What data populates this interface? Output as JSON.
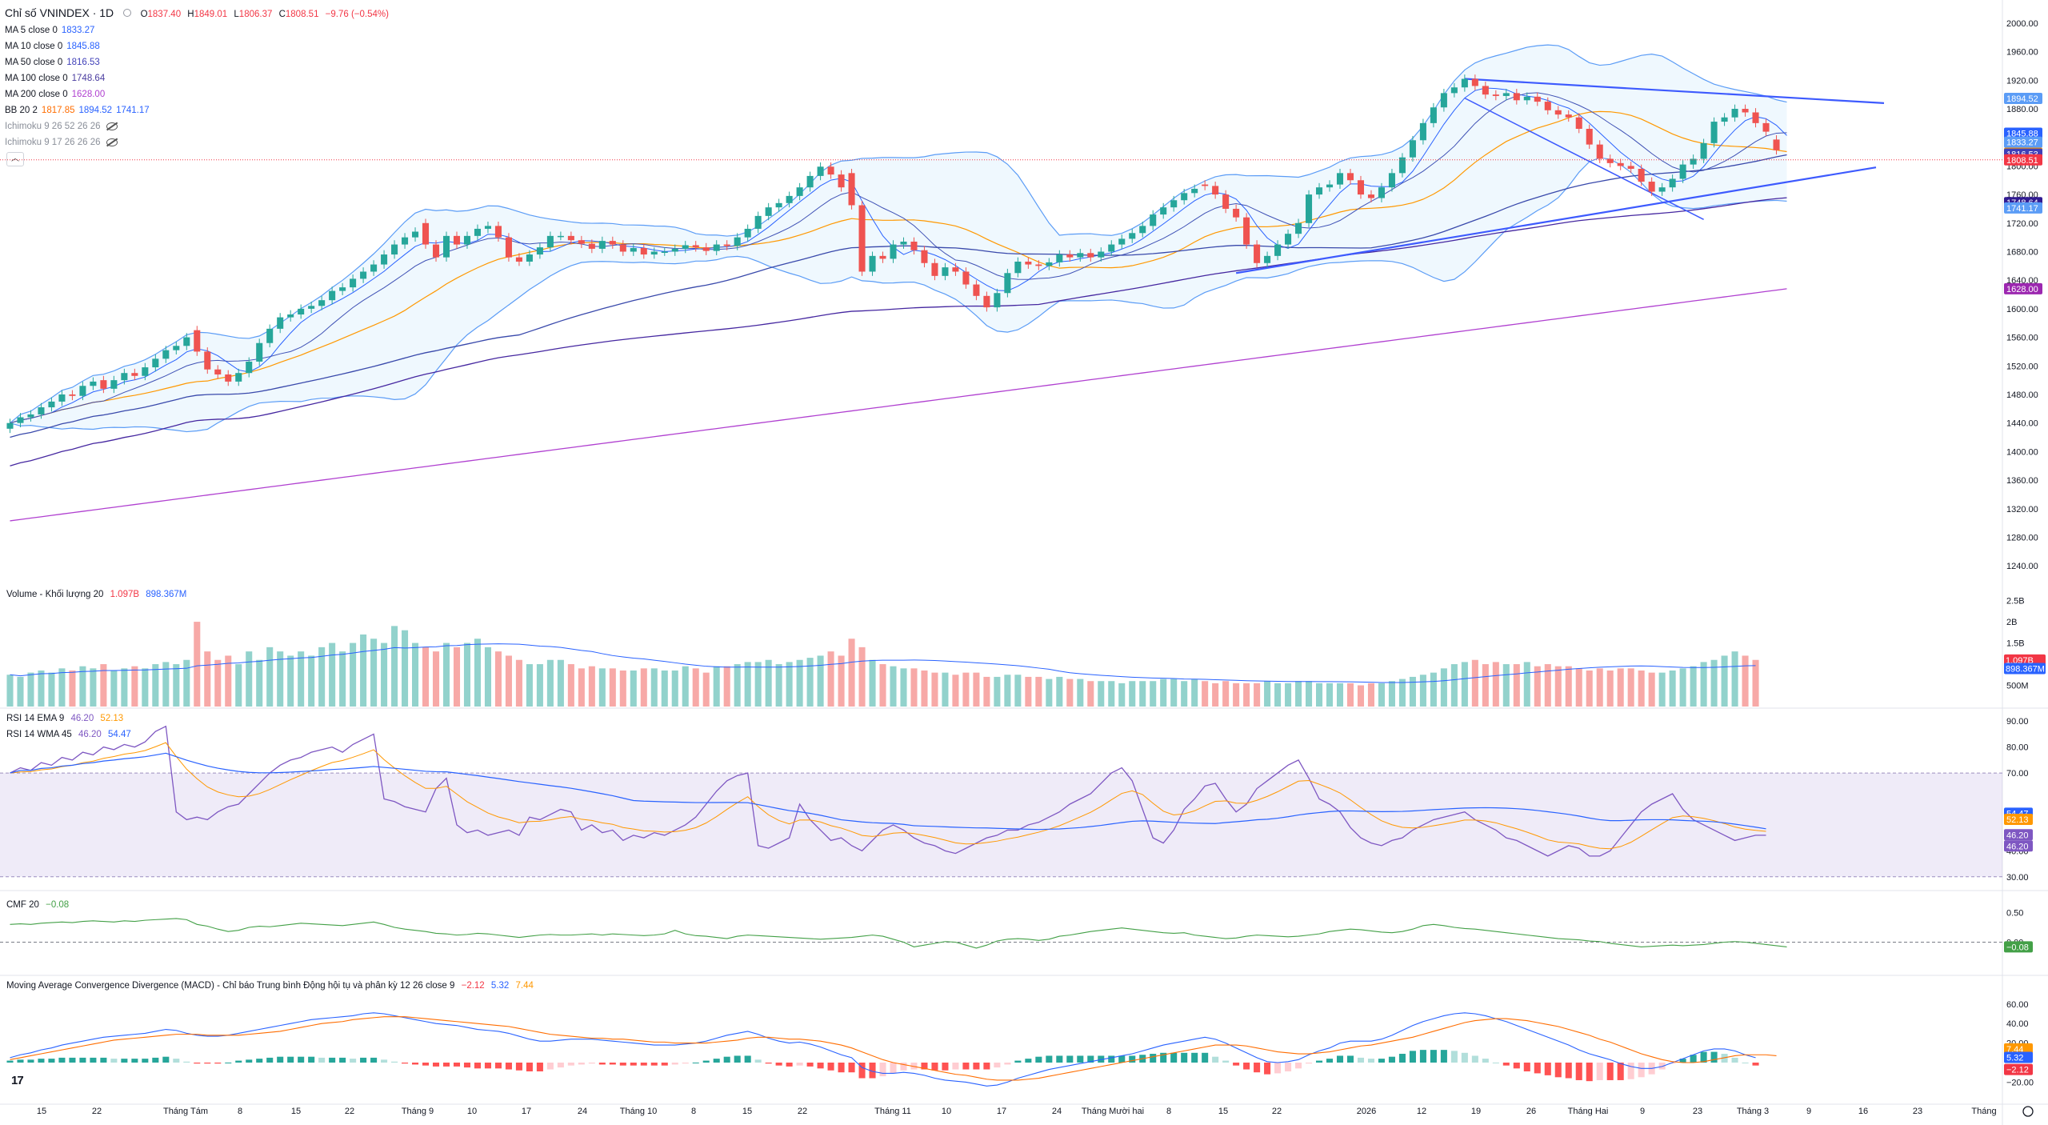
{
  "header": {
    "symbol": "Chỉ số VNINDEX · 1D",
    "open_label": "O",
    "open": "1837.40",
    "high_label": "H",
    "high": "1849.01",
    "low_label": "L",
    "low": "1806.37",
    "close_label": "C",
    "close": "1808.51",
    "change": "−9.76 (−0.54%)"
  },
  "indicators": [
    {
      "label": "MA 5 close 0",
      "values": [
        "1833.27"
      ],
      "colors": [
        "#2962ff"
      ]
    },
    {
      "label": "MA 10 close 0",
      "values": [
        "1845.88"
      ],
      "colors": [
        "#2962ff"
      ]
    },
    {
      "label": "MA 50 close 0",
      "values": [
        "1816.53"
      ],
      "colors": [
        "#3f3fb8"
      ]
    },
    {
      "label": "MA 100 close 0",
      "values": [
        "1748.64"
      ],
      "colors": [
        "#4a3ca0"
      ]
    },
    {
      "label": "MA 200 close 0",
      "values": [
        "1628.00"
      ],
      "colors": [
        "#b040d0"
      ]
    },
    {
      "label": "BB 20 2",
      "values": [
        "1817.85",
        "1894.52",
        "1741.17"
      ],
      "colors": [
        "#ff6d00",
        "#2962ff",
        "#2962ff"
      ]
    },
    {
      "label": "Ichimoku 9 26 52 26 26",
      "values": [],
      "colors": [],
      "hidden": true
    },
    {
      "label": "Ichimoku 9 17 26 26 26",
      "values": [],
      "colors": [],
      "hidden": true
    }
  ],
  "collapse_icon": "chevron-up-icon",
  "panes": {
    "volume": {
      "label": "Volume - Khối lượng 20",
      "values": [
        "1.097B",
        "898.367M"
      ]
    },
    "rsi1": {
      "label": "RSI 14 EMA 9",
      "values": [
        "46.20",
        "52.13"
      ]
    },
    "rsi2": {
      "label": "RSI 14 WMA 45",
      "values": [
        "46.20",
        "54.47"
      ]
    },
    "cmf": {
      "label": "CMF 20",
      "values": [
        "−0.08"
      ]
    },
    "macd": {
      "label": "Moving Average Convergence Divergence (MACD) - Chỉ báo Trung bình Động hội tụ và phân kỳ 12 26 close 9",
      "values": [
        "−2.12",
        "5.32",
        "7.44"
      ]
    }
  },
  "price_axis": [
    "2000.00",
    "1960.00",
    "1920.00",
    "1880.00",
    "1800.00",
    "1760.00",
    "1720.00",
    "1680.00",
    "1640.00",
    "1600.00",
    "1560.00",
    "1520.00",
    "1480.00",
    "1440.00",
    "1400.00",
    "1360.00",
    "1320.00",
    "1280.00",
    "1240.00"
  ],
  "price_tags": [
    {
      "text": "1894.52",
      "price": 1894.52,
      "color": "#5b9cf6"
    },
    {
      "text": "1845.88",
      "price": 1845.88,
      "color": "#2962ff"
    },
    {
      "text": "1833.27",
      "price": 1833.27,
      "color": "#5b9cf6"
    },
    {
      "text": "1817.85",
      "price": 1817.85,
      "color": "#ff9800"
    },
    {
      "text": "1816.53",
      "price": 1816.53,
      "color": "#3f3fb8"
    },
    {
      "text": "1808.51",
      "price": 1808.51,
      "color": "#f23645"
    },
    {
      "text": "1748.64",
      "price": 1748.64,
      "color": "#311b92"
    },
    {
      "text": "1741.17",
      "price": 1741.17,
      "color": "#5b9cf6"
    },
    {
      "text": "1628.00",
      "price": 1628.0,
      "color": "#9c27b0"
    }
  ],
  "volume_axis": [
    "2.5B",
    "2B",
    "1.5B",
    "500M"
  ],
  "volume_tags": [
    {
      "text": "1.097B",
      "color": "#f23645"
    },
    {
      "text": "898.367M",
      "color": "#2962ff"
    }
  ],
  "rsi_axis": [
    "90.00",
    "80.00",
    "70.00",
    "40.00",
    "30.00"
  ],
  "rsi_tags": [
    {
      "text": "54.47",
      "value": 54.47,
      "color": "#2962ff"
    },
    {
      "text": "52.13",
      "value": 52.13,
      "color": "#ff9800"
    },
    {
      "text": "46.20",
      "value": 46.2,
      "color": "#7e57c2"
    },
    {
      "text": "46.20",
      "value": 46.2,
      "color": "#7e57c2"
    }
  ],
  "cmf_axis": [
    "0.50",
    "0.00"
  ],
  "cmf_tag": {
    "text": "−0.08",
    "color": "#43a047"
  },
  "macd_axis": [
    "60.00",
    "40.00",
    "20.00",
    "−20.00"
  ],
  "macd_tags": [
    {
      "text": "7.44",
      "value": 7.44,
      "color": "#ff9800"
    },
    {
      "text": "5.32",
      "value": 5.32,
      "color": "#2962ff"
    },
    {
      "text": "−2.12",
      "value": -2.12,
      "color": "#f23645"
    }
  ],
  "date_axis": [
    "15",
    "22",
    "Tháng Tám",
    "8",
    "15",
    "22",
    "Tháng 9",
    "10",
    "17",
    "24",
    "Tháng 10",
    "8",
    "15",
    "22",
    "Tháng 11",
    "10",
    "17",
    "24",
    "Tháng Mười hai",
    "8",
    "15",
    "22",
    "2026",
    "12",
    "19",
    "26",
    "Tháng Hai",
    "9",
    "23",
    "Tháng 3",
    "9",
    "16",
    "23",
    "Tháng"
  ],
  "chart_data": {
    "type": "candlestick",
    "title": "Chỉ số VNINDEX · 1D",
    "ylim": [
      1220,
      2010
    ],
    "closes": [
      1440,
      1448,
      1452,
      1462,
      1470,
      1480,
      1478,
      1492,
      1498,
      1488,
      1500,
      1510,
      1506,
      1518,
      1530,
      1542,
      1548,
      1560,
      1540,
      1515,
      1508,
      1498,
      1510,
      1526,
      1552,
      1572,
      1588,
      1592,
      1600,
      1604,
      1612,
      1625,
      1630,
      1642,
      1652,
      1662,
      1676,
      1690,
      1700,
      1708,
      1690,
      1672,
      1702,
      1690,
      1702,
      1712,
      1716,
      1700,
      1672,
      1666,
      1676,
      1686,
      1702,
      1702,
      1696,
      1691,
      1684,
      1695,
      1690,
      1680,
      1685,
      1676,
      1680,
      1680,
      1684,
      1689,
      1686,
      1681,
      1690,
      1688,
      1700,
      1712,
      1730,
      1742,
      1748,
      1758,
      1770,
      1786,
      1799,
      1788,
      1770,
      1745,
      1652,
      1674,
      1670,
      1690,
      1694,
      1682,
      1664,
      1646,
      1658,
      1652,
      1634,
      1618,
      1602,
      1622,
      1650,
      1666,
      1662,
      1660,
      1665,
      1676,
      1672,
      1678,
      1672,
      1680,
      1690,
      1698,
      1706,
      1716,
      1732,
      1742,
      1752,
      1762,
      1768,
      1772,
      1760,
      1740,
      1728,
      1690,
      1664,
      1674,
      1690,
      1705,
      1720,
      1760,
      1770,
      1774,
      1790,
      1780,
      1760,
      1755,
      1770,
      1790,
      1812,
      1836,
      1860,
      1882,
      1902,
      1910,
      1922,
      1912,
      1900,
      1898,
      1902,
      1892,
      1897,
      1890,
      1878,
      1872,
      1868,
      1852,
      1830,
      1810,
      1804,
      1800,
      1796,
      1778,
      1764,
      1770,
      1782,
      1802,
      1810,
      1832,
      1862,
      1868,
      1880,
      1875,
      1860,
      1848,
      1822,
      1808
    ],
    "opens": [
      1432,
      1440,
      1448,
      1452,
      1462,
      1470,
      1480,
      1478,
      1492,
      1500,
      1488,
      1500,
      1510,
      1506,
      1518,
      1530,
      1542,
      1548,
      1570,
      1540,
      1515,
      1508,
      1498,
      1510,
      1526,
      1552,
      1572,
      1588,
      1592,
      1600,
      1604,
      1612,
      1625,
      1630,
      1642,
      1652,
      1662,
      1676,
      1690,
      1700,
      1720,
      1690,
      1672,
      1702,
      1690,
      1702,
      1712,
      1716,
      1700,
      1672,
      1666,
      1676,
      1686,
      1702,
      1702,
      1696,
      1691,
      1684,
      1695,
      1690,
      1680,
      1685,
      1676,
      1680,
      1680,
      1684,
      1689,
      1686,
      1681,
      1690,
      1688,
      1700,
      1712,
      1730,
      1742,
      1748,
      1758,
      1770,
      1786,
      1799,
      1788,
      1790,
      1745,
      1652,
      1674,
      1670,
      1690,
      1694,
      1682,
      1664,
      1646,
      1658,
      1652,
      1634,
      1618,
      1602,
      1622,
      1650,
      1666,
      1662,
      1660,
      1665,
      1676,
      1672,
      1678,
      1672,
      1680,
      1690,
      1698,
      1706,
      1716,
      1732,
      1742,
      1752,
      1762,
      1774,
      1772,
      1760,
      1740,
      1728,
      1690,
      1664,
      1674,
      1690,
      1705,
      1720,
      1760,
      1770,
      1774,
      1790,
      1780,
      1760,
      1755,
      1770,
      1790,
      1812,
      1836,
      1860,
      1882,
      1902,
      1910,
      1922,
      1912,
      1900,
      1898,
      1902,
      1892,
      1897,
      1890,
      1878,
      1872,
      1868,
      1852,
      1830,
      1810,
      1804,
      1800,
      1796,
      1778,
      1764,
      1770,
      1782,
      1802,
      1810,
      1832,
      1862,
      1868,
      1880,
      1875,
      1860,
      1837
    ],
    "volume_B": [
      0.75,
      0.7,
      0.8,
      0.85,
      0.8,
      0.9,
      0.85,
      0.95,
      0.9,
      1.0,
      0.85,
      0.9,
      0.95,
      0.9,
      1.0,
      1.05,
      1.0,
      1.1,
      2.0,
      1.3,
      1.1,
      1.2,
      1.0,
      1.3,
      1.1,
      1.4,
      1.3,
      1.2,
      1.3,
      1.2,
      1.4,
      1.5,
      1.3,
      1.5,
      1.7,
      1.6,
      1.5,
      1.9,
      1.8,
      1.5,
      1.4,
      1.3,
      1.5,
      1.4,
      1.5,
      1.6,
      1.4,
      1.3,
      1.2,
      1.1,
      1.0,
      1.0,
      1.1,
      1.1,
      1.0,
      0.9,
      0.95,
      0.9,
      0.9,
      0.85,
      0.85,
      0.9,
      0.9,
      0.85,
      0.85,
      0.95,
      0.9,
      0.8,
      0.95,
      0.95,
      1.0,
      1.05,
      1.05,
      1.1,
      1.0,
      1.05,
      1.1,
      1.15,
      1.2,
      1.3,
      1.2,
      1.6,
      1.4,
      1.1,
      1.0,
      0.95,
      0.9,
      0.9,
      0.85,
      0.8,
      0.8,
      0.75,
      0.8,
      0.8,
      0.7,
      0.7,
      0.75,
      0.75,
      0.7,
      0.7,
      0.65,
      0.7,
      0.65,
      0.65,
      0.6,
      0.6,
      0.6,
      0.55,
      0.6,
      0.6,
      0.6,
      0.65,
      0.65,
      0.6,
      0.65,
      0.6,
      0.55,
      0.6,
      0.55,
      0.55,
      0.55,
      0.6,
      0.55,
      0.55,
      0.6,
      0.6,
      0.55,
      0.55,
      0.55,
      0.55,
      0.5,
      0.55,
      0.55,
      0.6,
      0.65,
      0.7,
      0.75,
      0.8,
      0.9,
      1.0,
      1.05,
      1.1,
      1.0,
      1.05,
      1.0,
      1.0,
      1.05,
      0.95,
      1.0,
      0.95,
      0.95,
      0.9,
      0.85,
      0.9,
      0.85,
      0.9,
      0.9,
      0.85,
      0.8,
      0.8,
      0.85,
      0.9,
      0.95,
      1.05,
      1.1,
      1.2,
      1.3,
      1.2,
      1.1
    ],
    "rsi": [
      70,
      72,
      71,
      74,
      73,
      76,
      75,
      78,
      77,
      80,
      79,
      81,
      80,
      82,
      86,
      88,
      55,
      52,
      53,
      52,
      55,
      57,
      58,
      62,
      66,
      70,
      73,
      75,
      76,
      78,
      79,
      80,
      78,
      81,
      83,
      85,
      60,
      59,
      57,
      56,
      55,
      64,
      68,
      50,
      47,
      48,
      46,
      47,
      48,
      46,
      53,
      52,
      54,
      56,
      55,
      48,
      50,
      47,
      48,
      44,
      46,
      45,
      47,
      46,
      48,
      50,
      53,
      58,
      63,
      67,
      69,
      70,
      42,
      41,
      43,
      45,
      58,
      52,
      48,
      44,
      45,
      42,
      40,
      44,
      48,
      50,
      48,
      45,
      43,
      42,
      40,
      39,
      41,
      43,
      45,
      46,
      48,
      48,
      50,
      51,
      53,
      55,
      58,
      60,
      62,
      66,
      70,
      72,
      67,
      56,
      45,
      43,
      48,
      56,
      60,
      65,
      66,
      60,
      55,
      58,
      64,
      67,
      70,
      73,
      75,
      68,
      60,
      58,
      55,
      49,
      45,
      43,
      42,
      44,
      45,
      48,
      50,
      52,
      53,
      54,
      55,
      52,
      50,
      48,
      45,
      44,
      42,
      40,
      38,
      40,
      42,
      41,
      38,
      38,
      40,
      45,
      50,
      55,
      58,
      60,
      62,
      56,
      52,
      50,
      48,
      46,
      44,
      45,
      46,
      46
    ],
    "cmf": [
      0.3,
      0.31,
      0.3,
      0.32,
      0.33,
      0.34,
      0.33,
      0.35,
      0.36,
      0.35,
      0.34,
      0.36,
      0.35,
      0.37,
      0.38,
      0.39,
      0.4,
      0.38,
      0.3,
      0.27,
      0.22,
      0.18,
      0.2,
      0.25,
      0.27,
      0.26,
      0.28,
      0.3,
      0.32,
      0.31,
      0.3,
      0.29,
      0.28,
      0.3,
      0.32,
      0.34,
      0.3,
      0.25,
      0.22,
      0.2,
      0.18,
      0.15,
      0.14,
      0.12,
      0.13,
      0.15,
      0.14,
      0.12,
      0.1,
      0.08,
      0.1,
      0.12,
      0.13,
      0.12,
      0.12,
      0.13,
      0.14,
      0.12,
      0.14,
      0.13,
      0.12,
      0.11,
      0.12,
      0.14,
      0.2,
      0.14,
      0.11,
      0.1,
      0.08,
      0.06,
      0.1,
      0.12,
      0.11,
      0.1,
      0.09,
      0.08,
      0.07,
      0.06,
      0.05,
      0.06,
      0.07,
      0.08,
      0.1,
      0.12,
      0.1,
      0.05,
      0.0,
      -0.08,
      -0.05,
      -0.02,
      0.01,
      0.0,
      -0.05,
      -0.1,
      -0.05,
      0.02,
      0.05,
      0.06,
      0.05,
      0.03,
      0.05,
      0.1,
      0.12,
      0.15,
      0.18,
      0.2,
      0.22,
      0.24,
      0.22,
      0.2,
      0.18,
      0.16,
      0.15,
      0.16,
      0.12,
      0.1,
      0.08,
      0.06,
      0.07,
      0.1,
      0.12,
      0.11,
      0.1,
      0.09,
      0.1,
      0.12,
      0.14,
      0.18,
      0.2,
      0.22,
      0.21,
      0.19,
      0.17,
      0.16,
      0.18,
      0.22,
      0.28,
      0.3,
      0.28,
      0.25,
      0.23,
      0.22,
      0.2,
      0.18,
      0.16,
      0.14,
      0.12,
      0.1,
      0.08,
      0.06,
      0.05,
      0.04,
      0.02,
      0.01,
      -0.02,
      -0.04,
      -0.06,
      -0.08,
      -0.07,
      -0.06,
      -0.05,
      -0.06,
      -0.05,
      -0.04,
      -0.02,
      0.0,
      0.01,
      0.0,
      -0.02,
      -0.04,
      -0.06,
      -0.08
    ],
    "macd_line": [
      5,
      8,
      10,
      13,
      15,
      18,
      20,
      22,
      24,
      26,
      27,
      28,
      29,
      30,
      32,
      34,
      33,
      30,
      28,
      27,
      27,
      28,
      30,
      32,
      34,
      36,
      38,
      40,
      42,
      44,
      45,
      46,
      47,
      48,
      50,
      51,
      50,
      48,
      46,
      44,
      42,
      40,
      39,
      38,
      36,
      34,
      33,
      32,
      30,
      27,
      24,
      22,
      22,
      23,
      24,
      24,
      24,
      23,
      22,
      21,
      20,
      19,
      18,
      18,
      18,
      19,
      20,
      22,
      25,
      28,
      30,
      32,
      29,
      25,
      22,
      20,
      21,
      19,
      16,
      12,
      8,
      5,
      -5,
      -9,
      -11,
      -11,
      -10,
      -11,
      -13,
      -16,
      -18,
      -19,
      -20,
      -22,
      -24,
      -23,
      -20,
      -16,
      -13,
      -10,
      -7,
      -5,
      -3,
      -1,
      1,
      3,
      5,
      7,
      9,
      12,
      15,
      18,
      20,
      22,
      24,
      26,
      24,
      20,
      15,
      10,
      5,
      1,
      0,
      1,
      3,
      8,
      12,
      15,
      20,
      22,
      22,
      22,
      24,
      28,
      33,
      38,
      42,
      45,
      48,
      50,
      51,
      50,
      48,
      45,
      42,
      38,
      34,
      30,
      26,
      22,
      18,
      13,
      9,
      6,
      3,
      -1,
      -4,
      -6,
      -6,
      -4,
      0,
      4,
      8,
      12,
      14,
      14,
      12,
      8,
      5
    ],
    "macd_signal": [
      3,
      5,
      7,
      9,
      11,
      13,
      15,
      17,
      19,
      21,
      23,
      24,
      25,
      26,
      27,
      28,
      29,
      29,
      29,
      28,
      28,
      28,
      28,
      29,
      30,
      31,
      32,
      34,
      36,
      38,
      40,
      41,
      42,
      44,
      45,
      46,
      47,
      47,
      47,
      46,
      45,
      44,
      43,
      42,
      41,
      40,
      39,
      38,
      37,
      35,
      33,
      31,
      29,
      28,
      27,
      26,
      25,
      25,
      24,
      24,
      23,
      22,
      21,
      21,
      20,
      20,
      20,
      20,
      21,
      22,
      23,
      25,
      26,
      26,
      25,
      24,
      24,
      23,
      22,
      20,
      18,
      15,
      11,
      7,
      3,
      0,
      -2,
      -4,
      -6,
      -8,
      -10,
      -12,
      -13,
      -15,
      -17,
      -18,
      -18,
      -18,
      -17,
      -16,
      -14,
      -12,
      -10,
      -8,
      -6,
      -4,
      -2,
      0,
      2,
      4,
      6,
      8,
      10,
      12,
      14,
      16,
      18,
      18,
      18,
      17,
      15,
      13,
      11,
      10,
      9,
      9,
      10,
      11,
      13,
      15,
      17,
      18,
      20,
      22,
      24,
      26,
      29,
      32,
      35,
      38,
      41,
      43,
      44,
      45,
      45,
      44,
      43,
      41,
      39,
      37,
      34,
      31,
      28,
      24,
      21,
      17,
      13,
      9,
      6,
      3,
      1,
      0,
      0,
      1,
      3,
      5,
      7,
      8,
      8,
      8,
      7
    ],
    "series_names": []
  }
}
